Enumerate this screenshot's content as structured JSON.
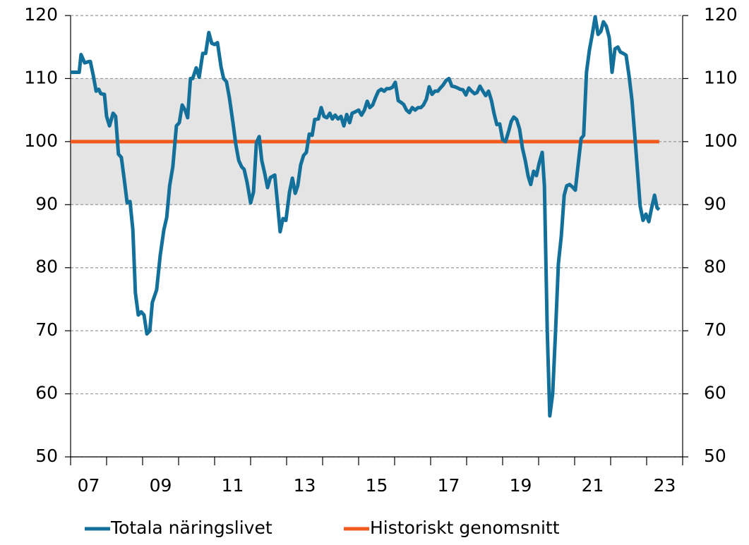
{
  "chart_data": {
    "type": "line",
    "xlim": [
      2007,
      2024
    ],
    "ylim": [
      50,
      120
    ],
    "yticks": [
      50,
      60,
      70,
      80,
      90,
      100,
      110,
      120
    ],
    "y2lim": [
      50,
      120
    ],
    "y2ticks": [
      50,
      60,
      70,
      80,
      90,
      100,
      110,
      120
    ],
    "xtick_marks": [
      2007,
      2008,
      2009,
      2010,
      2011,
      2012,
      2013,
      2014,
      2015,
      2016,
      2017,
      2018,
      2019,
      2020,
      2021,
      2022,
      2023,
      2024
    ],
    "xticks": [
      {
        "value": 2007.5,
        "label": "07"
      },
      {
        "value": 2009.5,
        "label": "09"
      },
      {
        "value": 2011.5,
        "label": "11"
      },
      {
        "value": 2013.5,
        "label": "13"
      },
      {
        "value": 2015.5,
        "label": "15"
      },
      {
        "value": 2017.5,
        "label": "17"
      },
      {
        "value": 2019.5,
        "label": "19"
      },
      {
        "value": 2021.5,
        "label": "21"
      },
      {
        "value": 2023.5,
        "label": "23"
      }
    ],
    "grid": true,
    "band": {
      "range": [
        90,
        110
      ],
      "color": "#e4e4e4"
    },
    "legend": "bottom",
    "series": [
      {
        "name": "Totala näringslivet",
        "color": "#13709a",
        "x": [
          2007.0,
          2007.14,
          2007.24,
          2007.29,
          2007.39,
          2007.51,
          2007.55,
          2007.63,
          2007.71,
          2007.78,
          2007.84,
          2007.94,
          2008.0,
          2008.08,
          2008.18,
          2008.25,
          2008.33,
          2008.41,
          2008.49,
          2008.57,
          2008.65,
          2008.73,
          2008.8,
          2008.88,
          2008.96,
          2009.04,
          2009.12,
          2009.2,
          2009.27,
          2009.39,
          2009.49,
          2009.59,
          2009.67,
          2009.75,
          2009.84,
          2009.94,
          2010.02,
          2010.1,
          2010.18,
          2010.25,
          2010.33,
          2010.39,
          2010.49,
          2010.57,
          2010.67,
          2010.75,
          2010.84,
          2010.92,
          2011.0,
          2011.08,
          2011.18,
          2011.25,
          2011.33,
          2011.41,
          2011.51,
          2011.59,
          2011.67,
          2011.75,
          2011.82,
          2011.9,
          2012.0,
          2012.08,
          2012.16,
          2012.24,
          2012.31,
          2012.39,
          2012.47,
          2012.55,
          2012.67,
          2012.75,
          2012.82,
          2012.9,
          2012.98,
          2013.08,
          2013.16,
          2013.24,
          2013.31,
          2013.39,
          2013.47,
          2013.55,
          2013.63,
          2013.71,
          2013.78,
          2013.88,
          2013.96,
          2014.04,
          2014.12,
          2014.2,
          2014.27,
          2014.35,
          2014.43,
          2014.51,
          2014.59,
          2014.67,
          2014.75,
          2014.82,
          2014.9,
          2015.0,
          2015.08,
          2015.16,
          2015.24,
          2015.31,
          2015.39,
          2015.47,
          2015.55,
          2015.63,
          2015.71,
          2015.78,
          2015.86,
          2015.94,
          2016.02,
          2016.1,
          2016.18,
          2016.25,
          2016.33,
          2016.41,
          2016.49,
          2016.57,
          2016.65,
          2016.73,
          2016.8,
          2016.88,
          2016.96,
          2017.04,
          2017.12,
          2017.2,
          2017.27,
          2017.35,
          2017.43,
          2017.51,
          2017.59,
          2017.67,
          2017.75,
          2017.82,
          2017.9,
          2017.98,
          2018.06,
          2018.14,
          2018.22,
          2018.29,
          2018.37,
          2018.45,
          2018.53,
          2018.61,
          2018.69,
          2018.76,
          2018.84,
          2018.92,
          2019.0,
          2019.08,
          2019.16,
          2019.24,
          2019.31,
          2019.39,
          2019.47,
          2019.55,
          2019.63,
          2019.71,
          2019.78,
          2019.86,
          2019.94,
          2020.02,
          2020.1,
          2020.16,
          2020.24,
          2020.31,
          2020.39,
          2020.47,
          2020.55,
          2020.63,
          2020.71,
          2020.78,
          2020.86,
          2020.94,
          2021.02,
          2021.1,
          2021.18,
          2021.25,
          2021.33,
          2021.41,
          2021.49,
          2021.57,
          2021.65,
          2021.73,
          2021.8,
          2021.88,
          2021.96,
          2022.04,
          2022.12,
          2022.2,
          2022.27,
          2022.35,
          2022.43,
          2022.51,
          2022.59,
          2022.67,
          2022.75,
          2022.82,
          2022.9,
          2022.98,
          2023.06,
          2023.14,
          2023.22,
          2023.29,
          2023.35
        ],
        "values": [
          111,
          111,
          111,
          113.8,
          112.5,
          112.7,
          112.7,
          110.5,
          108,
          108.3,
          107.6,
          107.5,
          104,
          102.5,
          104.5,
          104,
          98,
          97.5,
          94,
          90.3,
          90.5,
          86,
          76,
          72.5,
          73,
          72.5,
          69.5,
          70,
          74.5,
          76.5,
          82,
          86,
          88,
          93,
          96,
          102.5,
          103,
          105.8,
          105,
          103.8,
          110,
          110,
          111.7,
          110.2,
          114,
          114,
          117.3,
          115.6,
          115.4,
          115.7,
          111.8,
          110,
          109.5,
          107,
          103,
          99.5,
          97,
          96,
          95.6,
          93.6,
          90.3,
          92,
          99.8,
          100.8,
          97,
          95,
          92.7,
          94.3,
          94.7,
          90,
          85.7,
          87.8,
          87.5,
          92,
          94.2,
          91.8,
          93,
          96.3,
          97.8,
          98.3,
          101.2,
          101,
          103.5,
          103.6,
          105.4,
          104,
          103.8,
          104.5,
          103.6,
          104.2,
          103.6,
          104,
          102.5,
          104.3,
          103,
          104.5,
          104.7,
          105,
          104.2,
          105,
          106.4,
          105.4,
          105.8,
          107,
          108,
          108.3,
          108,
          108.4,
          108.4,
          108.6,
          109.4,
          106.5,
          106.2,
          105.9,
          105,
          104.6,
          105.4,
          105,
          105.4,
          105.4,
          105.8,
          106.7,
          108.7,
          107.5,
          108,
          108,
          108.5,
          109,
          109.7,
          110,
          108.8,
          108.7,
          108.5,
          108.3,
          108.2,
          107.4,
          108.5,
          108,
          107.6,
          107.8,
          108.8,
          108,
          107.3,
          108,
          106.5,
          104.5,
          102.7,
          102.8,
          100.3,
          100,
          101.5,
          103.2,
          103.9,
          103.5,
          102,
          99,
          97,
          94.5,
          93.2,
          95.3,
          94.6,
          96.7,
          98.3,
          93,
          70,
          56.5,
          60,
          70,
          80.7,
          85,
          91.5,
          93,
          93.2,
          92.8,
          92.3,
          96.5,
          100.5,
          101,
          111,
          114.5,
          117,
          119.8,
          117,
          117.5,
          119,
          118.3,
          116.5,
          111,
          114.7,
          115,
          114.2,
          114,
          113.7,
          110.5,
          106.7,
          101,
          95,
          89.8,
          87.5,
          88.5,
          87.3,
          89.5,
          91.5,
          89.5,
          89.2
        ]
      },
      {
        "name": "Historiskt genomsnitt",
        "color": "#f25a1d",
        "x": [
          2007.0,
          2023.35
        ],
        "values": [
          100,
          100
        ]
      }
    ]
  }
}
